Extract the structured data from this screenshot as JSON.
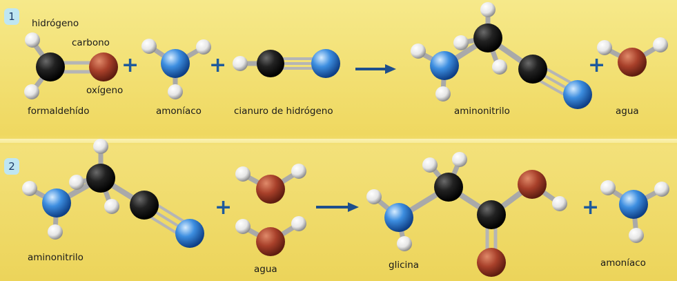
{
  "step1": {
    "badge": "1",
    "atom_labels": {
      "hydrogen": "hidrógeno",
      "carbon": "carbono",
      "oxygen": "oxígeno"
    },
    "molecules": [
      "formaldehído",
      "amoníaco",
      "cianuro de hidrógeno",
      "aminonitrilo",
      "agua"
    ]
  },
  "step2": {
    "badge": "2",
    "molecules": [
      "aminonitrilo",
      "agua",
      "glicina",
      "amoníaco"
    ]
  },
  "symbols": {
    "plus": "+"
  },
  "colors": {
    "background": "#efd860",
    "hydrogen": "#f2f2f2",
    "carbon": "#1c1c1c",
    "oxygen": "#a8402a",
    "nitrogen": "#2f7fd0",
    "arrow": "#1e4f8c",
    "plus": "#1e5a9c"
  }
}
